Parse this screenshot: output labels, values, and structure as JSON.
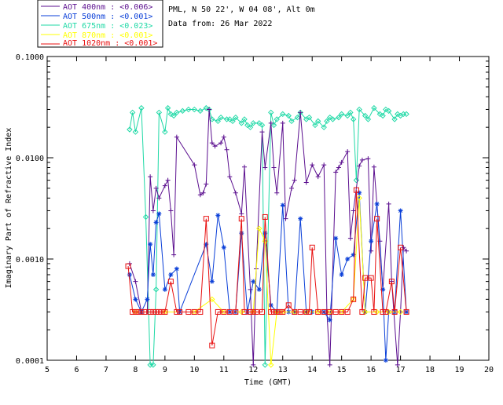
{
  "header": {
    "station": "PML, N 50 22', W 04 08', Alt 0m",
    "date": "Data from: 26 Mar 2022"
  },
  "legend": [
    {
      "label": "AOT  400nm : <0.006>",
      "color": "#5b0f8f"
    },
    {
      "label": "AOT  500nm : <0.001>",
      "color": "#0a3fd8"
    },
    {
      "label": "AOT  675nm : <0.023>",
      "color": "#1fd9a6"
    },
    {
      "label": "AOT  870nm : <0.001>",
      "color": "#ffff00"
    },
    {
      "label": "AOT 1020nm : <0.001>",
      "color": "#e81010"
    }
  ],
  "chart_data": {
    "type": "line",
    "title": "",
    "xlabel": "Time (GMT)",
    "ylabel": "Imaginary Part of Refractive Index",
    "xlim": [
      5,
      20
    ],
    "ylim": [
      0.0001,
      0.1
    ],
    "yscale": "log",
    "xticks": [
      "5",
      "6",
      "7",
      "8",
      "9",
      "10",
      "11",
      "12",
      "13",
      "14",
      "15",
      "16",
      "17",
      "18",
      "19",
      "20"
    ],
    "yticks": [
      "0.0001",
      "0.0010",
      "0.0100",
      "0.1000"
    ],
    "series": [
      {
        "name": "AOT 675nm",
        "color": "#1fd9a6",
        "marker": "diamond",
        "x": [
          7.8,
          7.9,
          8.0,
          8.2,
          8.35,
          8.5,
          8.6,
          8.7,
          8.8,
          9.0,
          9.1,
          9.2,
          9.3,
          9.4,
          9.6,
          9.8,
          10.0,
          10.2,
          10.4,
          10.5,
          10.6,
          10.8,
          10.9,
          11.1,
          11.2,
          11.3,
          11.4,
          11.6,
          11.7,
          11.8,
          11.9,
          12.0,
          12.2,
          12.3,
          12.4,
          12.6,
          12.7,
          12.8,
          13.0,
          13.2,
          13.3,
          13.5,
          13.6,
          13.8,
          13.9,
          14.1,
          14.2,
          14.4,
          14.5,
          14.6,
          14.7,
          14.9,
          15.0,
          15.2,
          15.3,
          15.4,
          15.5,
          15.6,
          15.8,
          15.9,
          16.1,
          16.3,
          16.4,
          16.5,
          16.6,
          16.8,
          16.9,
          17.0,
          17.1,
          17.2
        ],
        "y": [
          0.019,
          0.028,
          0.018,
          0.031,
          0.0026,
          9e-05,
          9e-05,
          0.0005,
          0.028,
          0.018,
          0.031,
          0.027,
          0.026,
          0.028,
          0.029,
          0.03,
          0.03,
          0.029,
          0.031,
          0.03,
          0.024,
          0.023,
          0.025,
          0.024,
          0.024,
          0.023,
          0.025,
          0.022,
          0.024,
          0.021,
          0.02,
          0.022,
          0.022,
          0.021,
          9e-05,
          0.028,
          0.021,
          0.024,
          0.027,
          0.026,
          0.023,
          0.025,
          0.028,
          0.024,
          0.025,
          0.021,
          0.023,
          0.02,
          0.023,
          0.025,
          0.024,
          0.025,
          0.027,
          0.026,
          0.028,
          0.024,
          0.006,
          0.03,
          0.026,
          0.024,
          0.031,
          0.027,
          0.026,
          0.03,
          0.029,
          0.024,
          0.027,
          0.026,
          0.027,
          0.027
        ]
      },
      {
        "name": "AOT 400nm",
        "color": "#5b0f8f",
        "marker": "plus",
        "x": [
          7.8,
          8.0,
          8.2,
          8.4,
          8.5,
          8.6,
          8.7,
          8.8,
          9.0,
          9.1,
          9.2,
          9.3,
          9.4,
          10.0,
          10.2,
          10.3,
          10.4,
          10.5,
          10.6,
          10.7,
          10.9,
          11.0,
          11.1,
          11.2,
          11.4,
          11.6,
          11.7,
          11.9,
          12.0,
          12.1,
          12.3,
          12.4,
          12.6,
          12.7,
          12.8,
          13.0,
          13.1,
          13.3,
          13.4,
          13.6,
          13.8,
          14.0,
          14.2,
          14.4,
          14.5,
          14.6,
          14.8,
          14.9,
          15.0,
          15.2,
          15.3,
          15.4,
          15.6,
          15.7,
          15.9,
          16.0,
          16.1,
          16.3,
          16.4,
          16.6,
          16.7,
          16.9,
          17.0,
          17.1,
          17.2
        ],
        "y": [
          0.0009,
          0.0006,
          0.0003,
          0.0003,
          0.0065,
          0.003,
          0.005,
          0.004,
          0.0053,
          0.006,
          0.003,
          0.0011,
          0.016,
          0.0085,
          0.0043,
          0.0045,
          0.0055,
          0.03,
          0.014,
          0.013,
          0.014,
          0.016,
          0.012,
          0.0065,
          0.0045,
          0.0028,
          0.0081,
          0.0005,
          9e-05,
          0.0008,
          0.018,
          0.008,
          0.022,
          0.008,
          0.0045,
          0.022,
          0.0025,
          0.005,
          0.006,
          0.028,
          0.0057,
          0.0085,
          0.0065,
          0.0085,
          0.0003,
          9e-05,
          0.0072,
          0.008,
          0.009,
          0.0115,
          0.0016,
          0.003,
          0.0083,
          0.0095,
          0.0098,
          0.0012,
          0.0081,
          0.0015,
          0.0005,
          0.0035,
          0.0006,
          9e-05,
          0.0003,
          0.0013,
          0.0012
        ]
      },
      {
        "name": "AOT 500nm",
        "color": "#0a3fd8",
        "marker": "asterisk",
        "x": [
          7.8,
          8.0,
          8.2,
          8.4,
          8.5,
          8.6,
          8.7,
          8.8,
          9.0,
          9.2,
          9.4,
          9.5,
          10.4,
          10.6,
          10.8,
          11.0,
          11.2,
          11.4,
          11.6,
          11.8,
          12.0,
          12.2,
          12.4,
          12.6,
          12.8,
          13.0,
          13.2,
          13.4,
          13.6,
          13.8,
          14.0,
          14.4,
          14.6,
          14.8,
          15.0,
          15.2,
          15.4,
          15.6,
          15.8,
          16.0,
          16.2,
          16.4,
          16.5,
          16.6,
          16.8,
          17.0,
          17.2
        ],
        "y": [
          0.0007,
          0.0004,
          0.0003,
          0.0004,
          0.0014,
          0.0007,
          0.0023,
          0.0028,
          0.0005,
          0.0007,
          0.0008,
          0.0003,
          0.0014,
          0.0006,
          0.0027,
          0.0013,
          0.0003,
          0.0003,
          0.0018,
          0.0003,
          0.0006,
          0.0005,
          0.0018,
          0.00035,
          0.0003,
          0.0034,
          0.0003,
          0.0003,
          0.0025,
          0.0003,
          0.0003,
          0.0003,
          0.00025,
          0.0016,
          0.0007,
          0.001,
          0.0011,
          0.0045,
          0.0003,
          0.0015,
          0.0035,
          0.0005,
          0.0001,
          0.0003,
          0.0003,
          0.003,
          0.0003
        ]
      },
      {
        "name": "AOT 870nm",
        "color": "#ffff00",
        "marker": "diamond",
        "x": [
          8.0,
          9.0,
          10.0,
          10.6,
          11.0,
          11.6,
          12.0,
          12.2,
          12.4,
          12.6,
          12.8,
          13.0,
          13.4,
          13.8,
          14.2,
          14.6,
          15.0,
          15.4,
          15.6,
          15.8,
          16.2,
          16.6,
          17.0
        ],
        "y": [
          0.0003,
          0.0003,
          0.0003,
          0.0004,
          0.0003,
          0.0003,
          0.0003,
          0.002,
          0.0015,
          9e-05,
          0.0003,
          0.0003,
          0.0003,
          0.0003,
          0.0003,
          0.0003,
          0.0003,
          0.0004,
          0.004,
          0.0003,
          0.0003,
          0.0003,
          0.0003
        ]
      },
      {
        "name": "AOT 1020nm",
        "color": "#e81010",
        "marker": "square",
        "x": [
          7.75,
          7.9,
          8.0,
          8.1,
          8.2,
          8.3,
          8.5,
          8.6,
          8.7,
          8.8,
          8.9,
          9.0,
          9.2,
          9.4,
          9.5,
          9.8,
          10.0,
          10.2,
          10.4,
          10.6,
          10.8,
          11.0,
          11.2,
          11.4,
          11.6,
          11.7,
          11.9,
          12.0,
          12.1,
          12.3,
          12.4,
          12.6,
          12.7,
          12.8,
          12.9,
          13.0,
          13.2,
          13.4,
          13.6,
          13.8,
          13.9,
          14.0,
          14.2,
          14.4,
          14.6,
          14.8,
          15.0,
          15.2,
          15.4,
          15.5,
          15.7,
          15.8,
          16.0,
          16.1,
          16.2,
          16.4,
          16.5,
          16.7,
          16.8,
          17.0,
          17.2
        ],
        "y": [
          0.00085,
          0.0003,
          0.0003,
          0.0003,
          0.0003,
          0.0003,
          0.0003,
          0.0003,
          0.0003,
          0.0003,
          0.0003,
          0.0003,
          0.0006,
          0.0003,
          0.0003,
          0.0003,
          0.0003,
          0.0003,
          0.0025,
          0.00014,
          0.0003,
          0.0003,
          0.0003,
          0.0003,
          0.0025,
          0.0003,
          0.0003,
          0.0003,
          0.0003,
          0.0003,
          0.0026,
          0.0003,
          0.0003,
          0.0003,
          0.0003,
          0.0003,
          0.00035,
          0.0003,
          0.0003,
          0.0003,
          0.0003,
          0.0013,
          0.0003,
          0.0003,
          0.0003,
          0.0003,
          0.0003,
          0.0003,
          0.0004,
          0.0048,
          0.0003,
          0.00065,
          0.00065,
          0.0003,
          0.0025,
          0.0003,
          0.0003,
          0.0006,
          0.0003,
          0.0013,
          0.0003
        ]
      }
    ]
  }
}
